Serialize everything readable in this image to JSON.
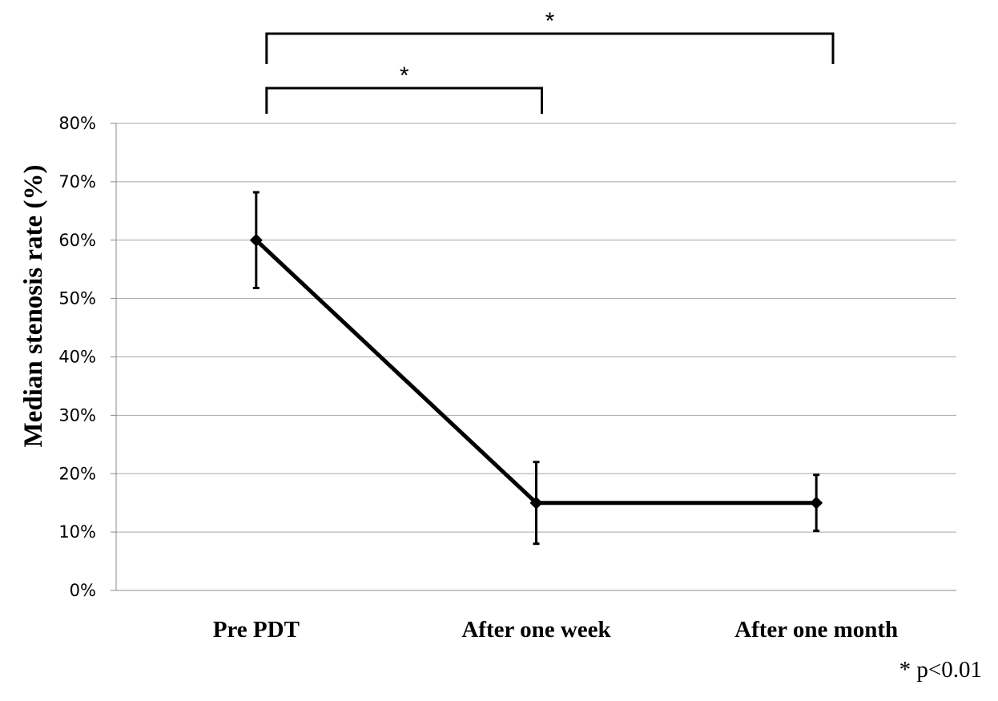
{
  "chart_data": {
    "type": "line",
    "categories": [
      "Pre PDT",
      "After one week",
      "After one month"
    ],
    "series": [
      {
        "values": [
          60,
          15,
          15
        ],
        "error_low": [
          51.8,
          8,
          10.2
        ],
        "error_high": [
          68.2,
          22,
          19.8
        ],
        "color": "#000000"
      }
    ],
    "ylabel": "Median stenosis rate (%)",
    "ylim": [
      0,
      80
    ],
    "yticks": [
      0,
      10,
      20,
      30,
      40,
      50,
      60,
      70,
      80
    ],
    "ytick_format": "{v}%",
    "grid": true,
    "marker": "diamond",
    "significance": [
      {
        "from": 0,
        "to": 1,
        "label": "*"
      },
      {
        "from": 0,
        "to": 2,
        "label": "*"
      }
    ],
    "footnote": "* p<0.01"
  }
}
